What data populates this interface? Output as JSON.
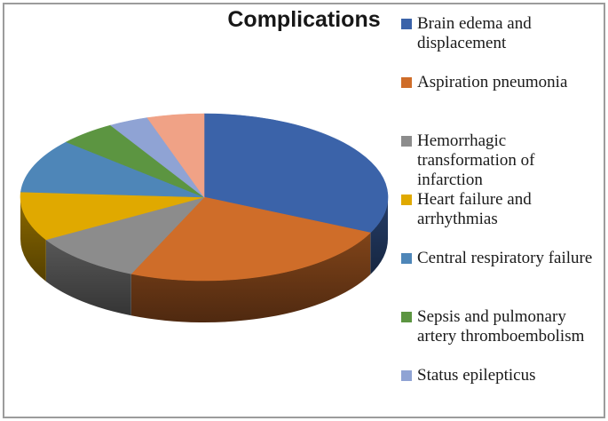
{
  "chart_data": {
    "type": "pie",
    "title": "Complications",
    "effect": "3d",
    "start_angle_deg": 0,
    "direction": "clockwise",
    "legend_position": "right",
    "legend_note": "only 7 of 8 slice labels visible; last slice legend entry cut off",
    "slices": [
      {
        "label": "Brain edema and displacement",
        "percent": 32,
        "color": "#3B63A9",
        "in_legend": true
      },
      {
        "label": "Aspiration pneumonia",
        "percent": 24.5,
        "color": "#CF6D29",
        "in_legend": true
      },
      {
        "label": "Hemorrhagic transformation of infarction",
        "percent": 10,
        "color": "#8C8C8C",
        "in_legend": true
      },
      {
        "label": "Heart failure and arrhythmias",
        "percent": 9.5,
        "color": "#E0A900",
        "in_legend": true
      },
      {
        "label": "Central respiratory failure",
        "percent": 10.5,
        "color": "#4E86B8",
        "in_legend": true
      },
      {
        "label": "Sepsis and pulmonary artery thromboembolism",
        "percent": 5,
        "color": "#5C9541",
        "in_legend": true
      },
      {
        "label": "Status epilepticus",
        "percent": 3.5,
        "color": "#8FA3D4",
        "in_legend": true
      },
      {
        "label": "",
        "percent": 5,
        "color": "#F0A286",
        "in_legend": false
      }
    ]
  },
  "colors": {
    "frame_border": "#9C9C9C",
    "title_text": "#171717",
    "legend_text": "#1A1A1A",
    "background": "#FFFFFF"
  }
}
